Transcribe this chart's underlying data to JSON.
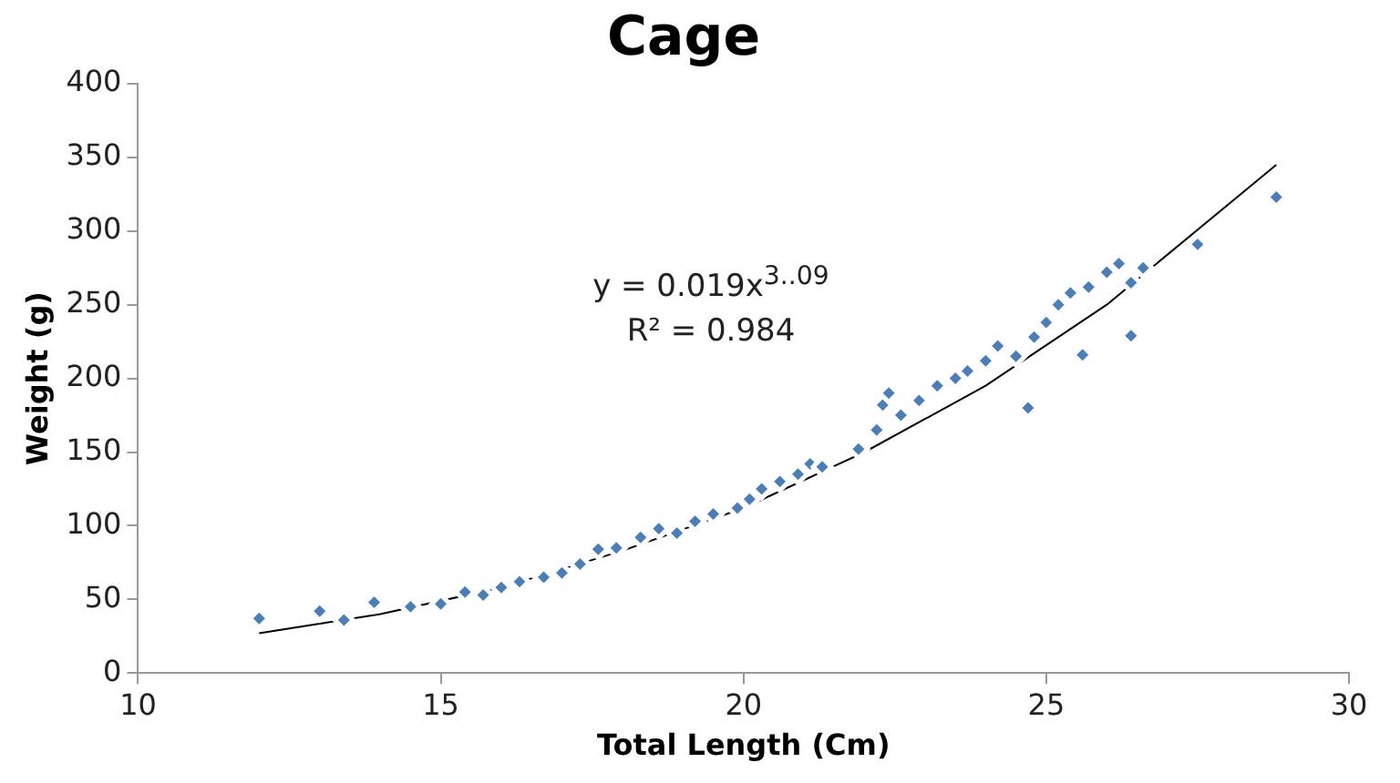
{
  "chart_data": {
    "type": "scatter",
    "title": "Cage",
    "xlabel": "Total Length (Cm)",
    "ylabel": "Weight (g)",
    "xlim": [
      10,
      30
    ],
    "xticks": [
      10,
      15,
      20,
      25,
      30
    ],
    "ylim": [
      0,
      400
    ],
    "yticks": [
      0,
      50,
      100,
      150,
      200,
      250,
      300,
      350,
      400
    ],
    "grid": false,
    "legend": false,
    "marker": "diamond",
    "annotations": [
      "y = 0.019x$^{3..09}$",
      "R² = 0.984"
    ],
    "series": [
      {
        "type": "scatter",
        "color": "#4a7ebb",
        "x": [
          12.0,
          13.0,
          13.4,
          13.9,
          14.5,
          15.0,
          15.4,
          15.7,
          16.0,
          16.3,
          16.7,
          17.0,
          17.3,
          17.6,
          17.9,
          18.3,
          18.6,
          18.9,
          19.2,
          19.5,
          19.9,
          20.1,
          20.3,
          20.6,
          20.9,
          21.1,
          21.3,
          21.9,
          22.2,
          22.3,
          22.4,
          22.6,
          22.9,
          23.2,
          23.5,
          23.7,
          24.0,
          24.2,
          24.5,
          24.7,
          24.8,
          25.0,
          25.2,
          25.4,
          25.6,
          25.7,
          26.0,
          26.2,
          26.4,
          26.4,
          26.6,
          27.5,
          28.8
        ],
        "values": [
          37,
          42,
          36,
          48,
          45,
          47,
          55,
          53,
          58,
          62,
          65,
          68,
          74,
          84,
          85,
          92,
          98,
          95,
          103,
          108,
          112,
          118,
          125,
          130,
          135,
          142,
          140,
          152,
          165,
          182,
          190,
          175,
          185,
          195,
          200,
          205,
          212,
          222,
          215,
          180,
          228,
          238,
          250,
          258,
          216,
          262,
          272,
          278,
          229,
          265,
          275,
          291,
          323
        ]
      },
      {
        "type": "line",
        "color": "#000000",
        "marker": "none",
        "x": [
          12,
          14,
          16,
          18,
          20,
          22,
          24,
          26,
          28.8
        ],
        "values": [
          27,
          40,
          58,
          83,
          112,
          150,
          195,
          250,
          345
        ]
      }
    ]
  }
}
